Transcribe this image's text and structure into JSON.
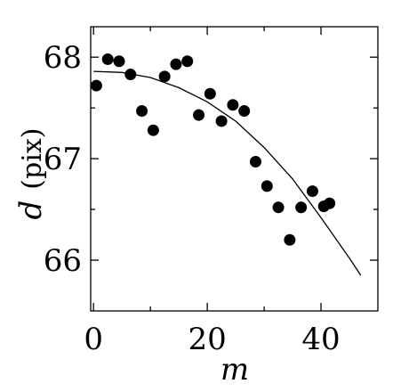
{
  "chart_data": {
    "type": "scatter",
    "xlabel": "m",
    "ylabel_var": "d",
    "ylabel_unit": "(pix)",
    "xlim": [
      -0.5,
      50
    ],
    "ylim": [
      65.5,
      68.3
    ],
    "xticks": [
      0,
      20,
      40
    ],
    "xtick_labels": [
      "0",
      "20",
      "40"
    ],
    "yticks": [
      66,
      67,
      68
    ],
    "ytick_labels": [
      "66",
      "67",
      "68"
    ],
    "minor_xticks": [
      10,
      30
    ],
    "grid": false,
    "points": [
      {
        "x": 0.5,
        "y": 67.72
      },
      {
        "x": 2.5,
        "y": 67.98
      },
      {
        "x": 4.5,
        "y": 67.96
      },
      {
        "x": 6.5,
        "y": 67.83
      },
      {
        "x": 8.5,
        "y": 67.47
      },
      {
        "x": 10.5,
        "y": 67.28
      },
      {
        "x": 12.5,
        "y": 67.81
      },
      {
        "x": 14.5,
        "y": 67.93
      },
      {
        "x": 16.5,
        "y": 67.96
      },
      {
        "x": 18.5,
        "y": 67.43
      },
      {
        "x": 20.5,
        "y": 67.64
      },
      {
        "x": 22.5,
        "y": 67.37
      },
      {
        "x": 24.5,
        "y": 67.53
      },
      {
        "x": 26.5,
        "y": 67.47
      },
      {
        "x": 28.5,
        "y": 66.97
      },
      {
        "x": 30.5,
        "y": 66.73
      },
      {
        "x": 32.5,
        "y": 66.52
      },
      {
        "x": 34.5,
        "y": 66.2
      },
      {
        "x": 36.5,
        "y": 66.52
      },
      {
        "x": 38.5,
        "y": 66.68
      },
      {
        "x": 40.5,
        "y": 66.53
      },
      {
        "x": 41.5,
        "y": 66.56
      }
    ],
    "fit_curve": [
      {
        "x": 0,
        "y": 67.86
      },
      {
        "x": 5,
        "y": 67.85
      },
      {
        "x": 10,
        "y": 67.8
      },
      {
        "x": 15,
        "y": 67.7
      },
      {
        "x": 20,
        "y": 67.56
      },
      {
        "x": 25,
        "y": 67.37
      },
      {
        "x": 30,
        "y": 67.11
      },
      {
        "x": 35,
        "y": 66.8
      },
      {
        "x": 40,
        "y": 66.42
      },
      {
        "x": 45,
        "y": 66.02
      },
      {
        "x": 47,
        "y": 65.85
      }
    ]
  }
}
